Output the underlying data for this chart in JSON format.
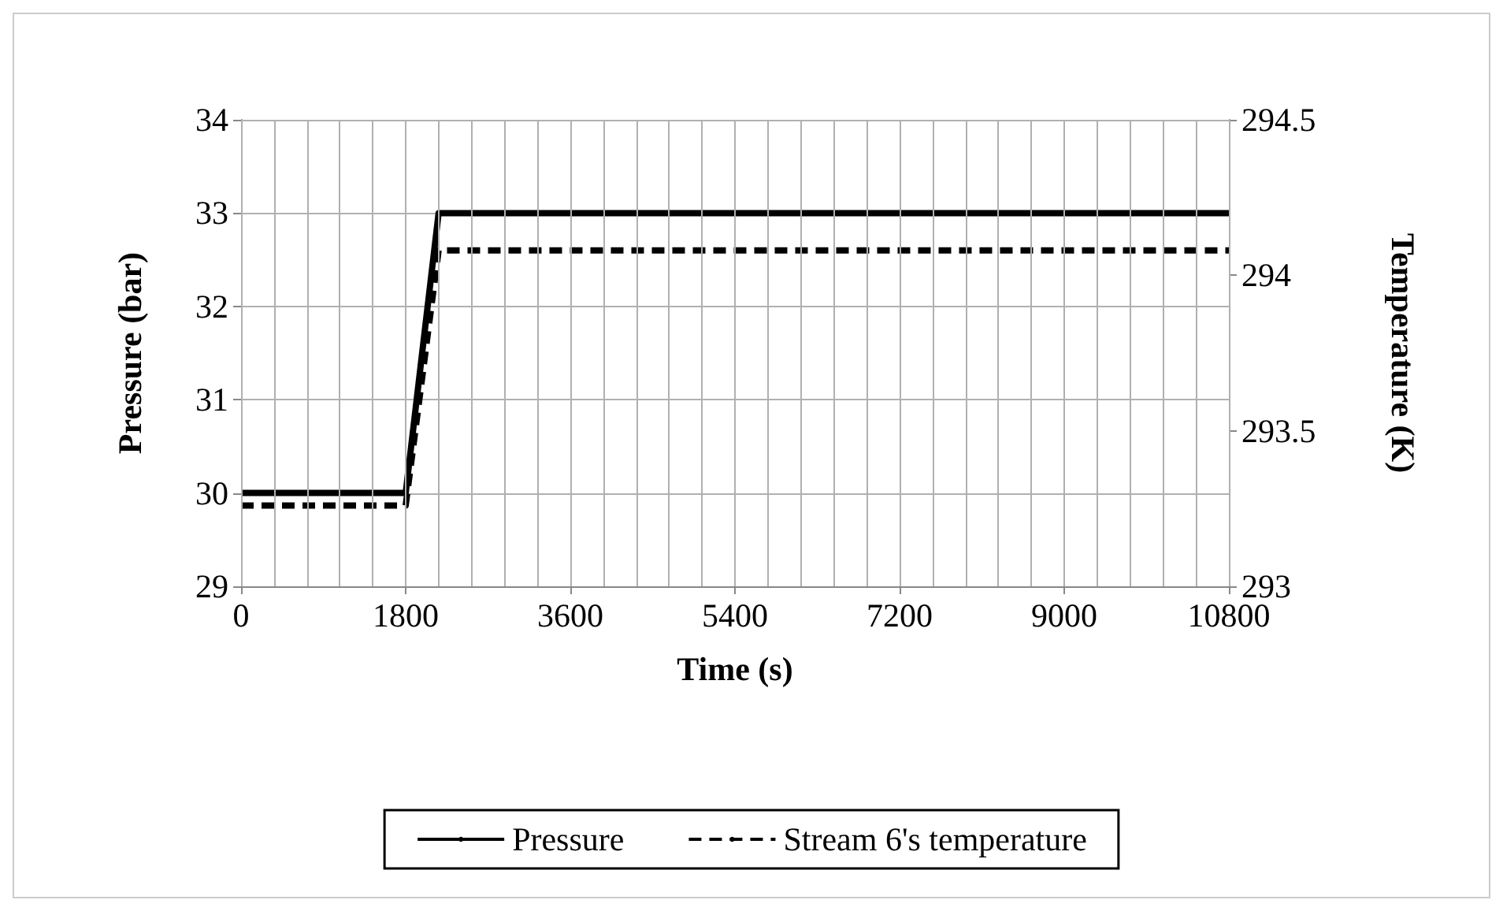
{
  "chart_data": {
    "type": "line",
    "xlabel": "Time (s)",
    "ylabel": "Pressure (bar)",
    "y2label": "Temperature (K)",
    "xlim": [
      0,
      10800
    ],
    "xticks": [
      0,
      1800,
      3600,
      5400,
      7200,
      9000,
      10800
    ],
    "ylim": [
      29,
      34
    ],
    "yticks": [
      29,
      30,
      31,
      32,
      33,
      34
    ],
    "y2lim": [
      293,
      294.5
    ],
    "y2ticks": [
      293,
      293.5,
      294,
      294.5
    ],
    "grid": true,
    "legend": "bottom",
    "marker": "none",
    "series": [
      {
        "name": "Pressure",
        "color": "#000000",
        "line_style": "solid",
        "x": [
          0,
          1800,
          2160,
          10800
        ],
        "values": [
          30,
          30,
          33,
          33
        ]
      },
      {
        "name": "Stream 6's temperature",
        "color": "#000000",
        "line_style": "dashed",
        "axis": "y2",
        "x": [
          0,
          1800,
          2160,
          10800
        ],
        "values": [
          293.26,
          293.26,
          294.08,
          294.08
        ]
      }
    ]
  }
}
